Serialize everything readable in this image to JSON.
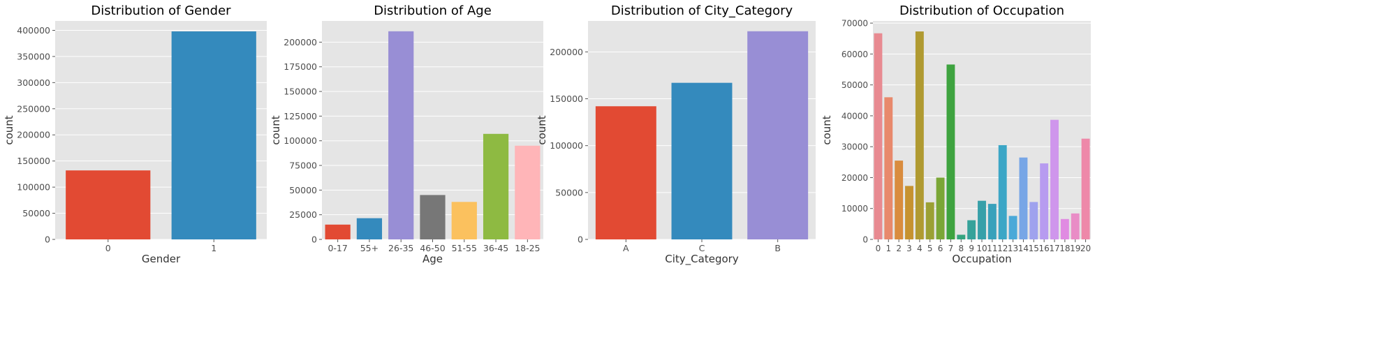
{
  "chart_data": [
    {
      "type": "bar",
      "title": "Distribution of Gender",
      "xlabel": "Gender",
      "ylabel": "count",
      "categories": [
        "0",
        "1"
      ],
      "values": [
        132000,
        398000
      ],
      "ylim": [
        0,
        418000
      ],
      "yticks": [
        0,
        50000,
        100000,
        150000,
        200000,
        250000,
        300000,
        350000,
        400000
      ],
      "colors": [
        "#e24a33",
        "#348abd"
      ],
      "grid": true
    },
    {
      "type": "bar",
      "title": "Distribution of Age",
      "xlabel": "Age",
      "ylabel": "count",
      "categories": [
        "0-17",
        "55+",
        "26-35",
        "46-50",
        "51-55",
        "36-45",
        "18-25"
      ],
      "values": [
        15000,
        21500,
        211000,
        45000,
        38000,
        107000,
        95000
      ],
      "ylim": [
        0,
        221500
      ],
      "yticks": [
        0,
        25000,
        50000,
        75000,
        100000,
        125000,
        150000,
        175000,
        200000
      ],
      "colors": [
        "#e24a33",
        "#348abd",
        "#988ed5",
        "#777777",
        "#fbc15e",
        "#8eba42",
        "#ffb5b8"
      ],
      "grid": true
    },
    {
      "type": "bar",
      "title": "Distribution of City_Category",
      "xlabel": "City_Category",
      "ylabel": "count",
      "categories": [
        "A",
        "C",
        "B"
      ],
      "values": [
        142000,
        167000,
        222000
      ],
      "ylim": [
        0,
        233000
      ],
      "yticks": [
        0,
        50000,
        100000,
        150000,
        200000
      ],
      "colors": [
        "#e24a33",
        "#348abd",
        "#988ed5"
      ],
      "grid": true
    },
    {
      "type": "bar",
      "title": "Distribution of Occupation",
      "xlabel": "Occupation",
      "ylabel": "count",
      "categories": [
        "0",
        "1",
        "2",
        "3",
        "4",
        "5",
        "6",
        "7",
        "8",
        "9",
        "10",
        "11",
        "12",
        "13",
        "14",
        "15",
        "16",
        "17",
        "18",
        "19",
        "20"
      ],
      "values": [
        66700,
        46000,
        25500,
        17300,
        67300,
        12000,
        20000,
        56600,
        1500,
        6200,
        12500,
        11500,
        30500,
        7600,
        26500,
        12100,
        24600,
        38700,
        6600,
        8400,
        32600
      ],
      "ylim": [
        0,
        70700
      ],
      "yticks": [
        0,
        10000,
        20000,
        30000,
        40000,
        50000,
        60000,
        70000
      ],
      "colors": [
        "#e88a91",
        "#e8896c",
        "#d98c3e",
        "#c6922f",
        "#b09a31",
        "#9ba034",
        "#7aa636",
        "#3ea33f",
        "#35a47f",
        "#36a29a",
        "#37a0a9",
        "#38a1bb",
        "#3ba6c6",
        "#4aa9d8",
        "#77a6e6",
        "#9fa2ee",
        "#b79bf0",
        "#cf96ec",
        "#e08be2",
        "#e98cc6",
        "#ee88a9"
      ],
      "grid": true
    }
  ]
}
